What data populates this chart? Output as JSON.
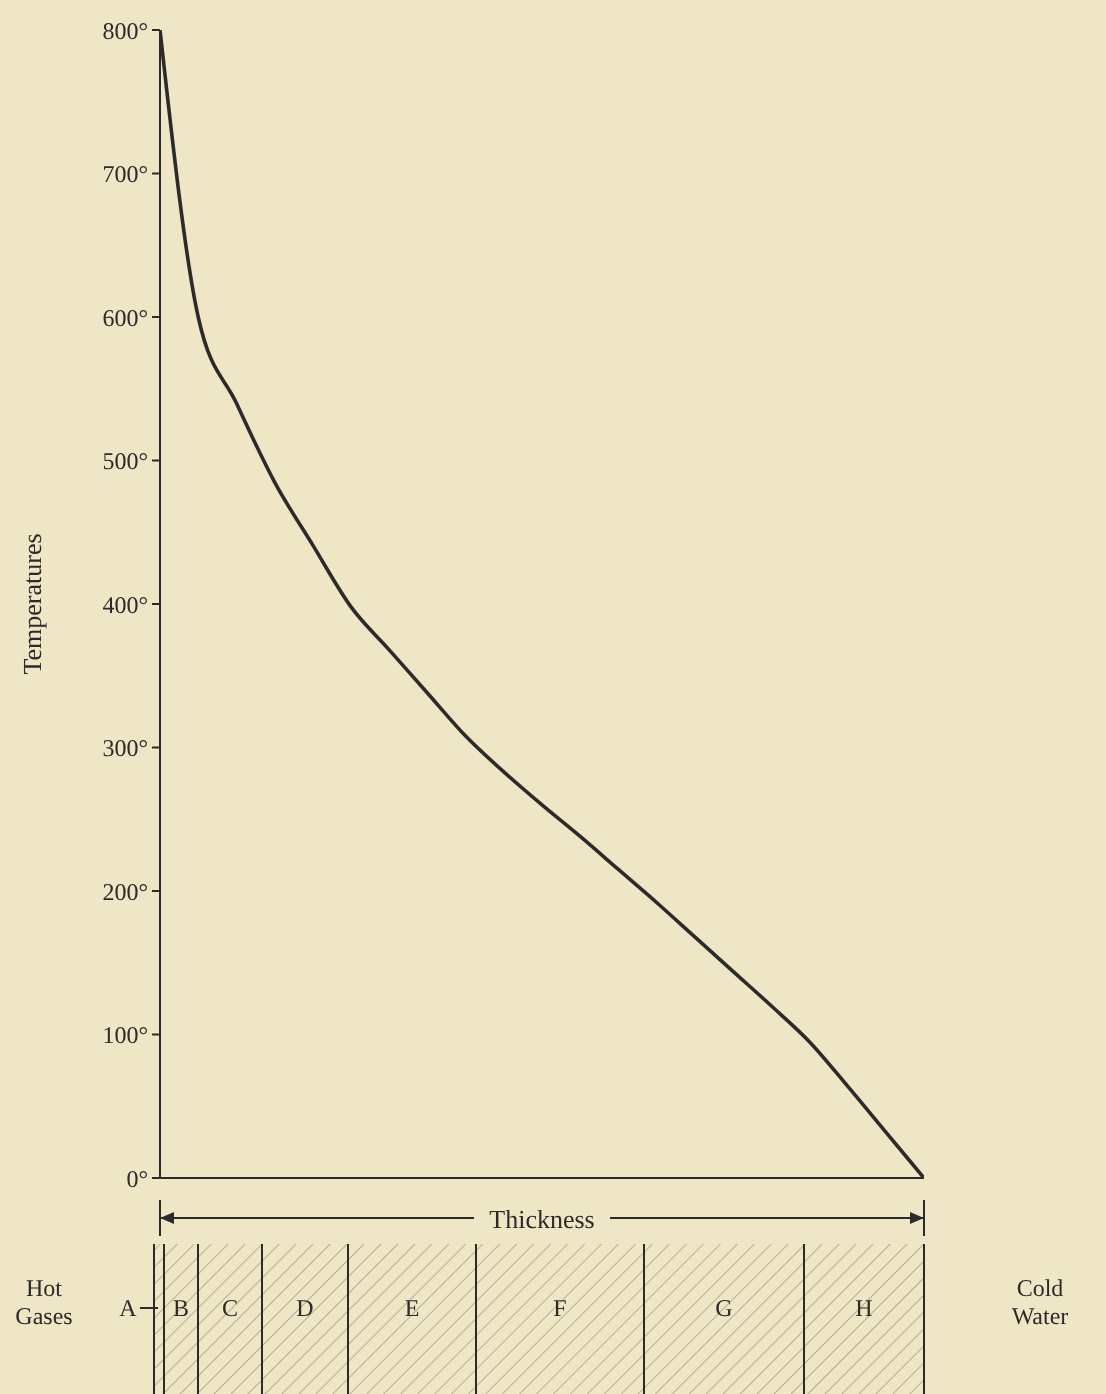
{
  "chart_data": {
    "type": "line",
    "ylabel": "Temperatures",
    "categories": [
      null,
      null,
      null,
      null,
      null,
      null,
      null,
      null,
      null,
      null,
      null,
      null,
      null,
      null,
      null,
      null,
      null,
      null,
      null,
      null,
      null
    ],
    "series": [
      {
        "color": "#2b2b2b",
        "values": [
          800,
          600,
          540,
          485,
          441,
          398,
          368,
          338,
          308,
          283,
          260,
          238,
          215,
          192,
          168,
          144,
          120,
          95,
          64,
          32,
          0
        ]
      }
    ],
    "ylim": [
      0,
      800
    ],
    "yticks": [
      {
        "value": 0,
        "label": "0°"
      },
      {
        "value": 100,
        "label": "100°"
      },
      {
        "value": 200,
        "label": "200°"
      },
      {
        "value": 300,
        "label": "300°"
      },
      {
        "value": 400,
        "label": "400°"
      },
      {
        "value": 500,
        "label": "500°"
      },
      {
        "value": 600,
        "label": "600°"
      },
      {
        "value": 700,
        "label": "700°"
      },
      {
        "value": 800,
        "label": "800°"
      }
    ],
    "grid": false,
    "legend": false,
    "marker": "none",
    "line_style": "solid",
    "tick_labels": "y",
    "annotations": [
      "Thickness",
      "Hot Gases",
      "Cold Water",
      "A",
      "B",
      "C",
      "D",
      "E",
      "F",
      "G",
      "H"
    ]
  }
}
